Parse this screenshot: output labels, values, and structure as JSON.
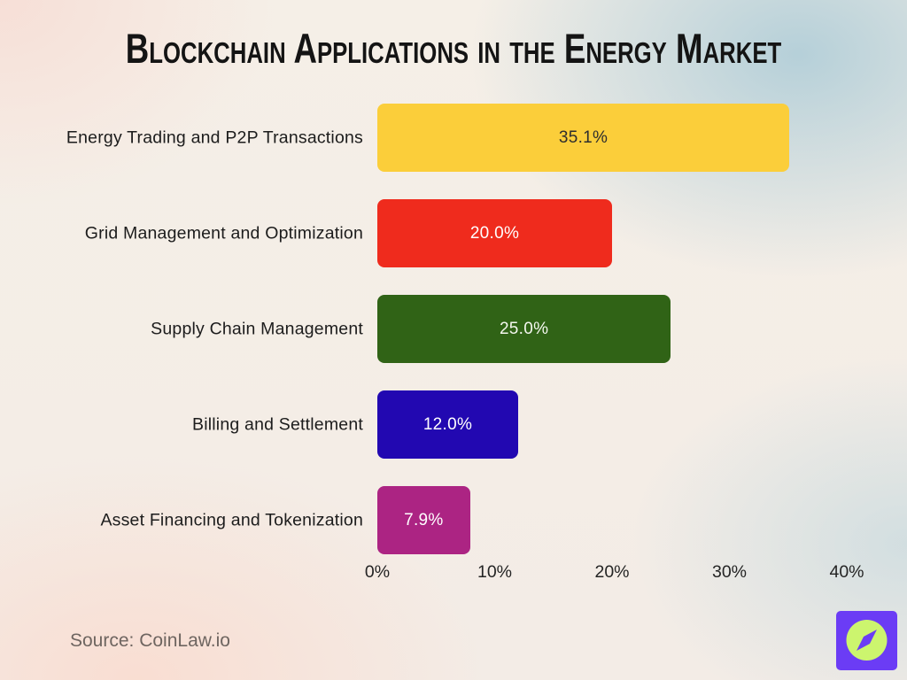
{
  "title": "Blockchain Applications in the Energy Market",
  "source": "Source: CoinLaw.io",
  "logo": {
    "name": "coinlaw-compass-logo",
    "bg_color": "#6B3CF5",
    "circle_color": "#CCF56E"
  },
  "chart_data": {
    "type": "bar",
    "orientation": "horizontal",
    "title": "Blockchain Applications in the Energy Market",
    "categories": [
      "Energy Trading and P2P Transactions",
      "Grid Management and Optimization",
      "Supply Chain Management",
      "Billing and Settlement",
      "Asset Financing and Tokenization"
    ],
    "values": [
      35.1,
      20.0,
      25.0,
      12.0,
      7.9
    ],
    "value_labels": [
      "35.1%",
      "20.0%",
      "25.0%",
      "12.0%",
      "7.9%"
    ],
    "bar_colors": [
      "#FBCE3A",
      "#EF2B1D",
      "#306316",
      "#2208B1",
      "#AC2483"
    ],
    "value_text_colors": [
      "#2e2e2e",
      "#ffffff",
      "#f4f7ef",
      "#ffffff",
      "#ffffff"
    ],
    "xlabel": "",
    "ylabel": "",
    "xlim": [
      0,
      40
    ],
    "x_ticks": [
      "0%",
      "10%",
      "20%",
      "30%",
      "40%"
    ],
    "x_tick_values": [
      0,
      10,
      20,
      30,
      40
    ],
    "grid": false,
    "legend": false
  }
}
